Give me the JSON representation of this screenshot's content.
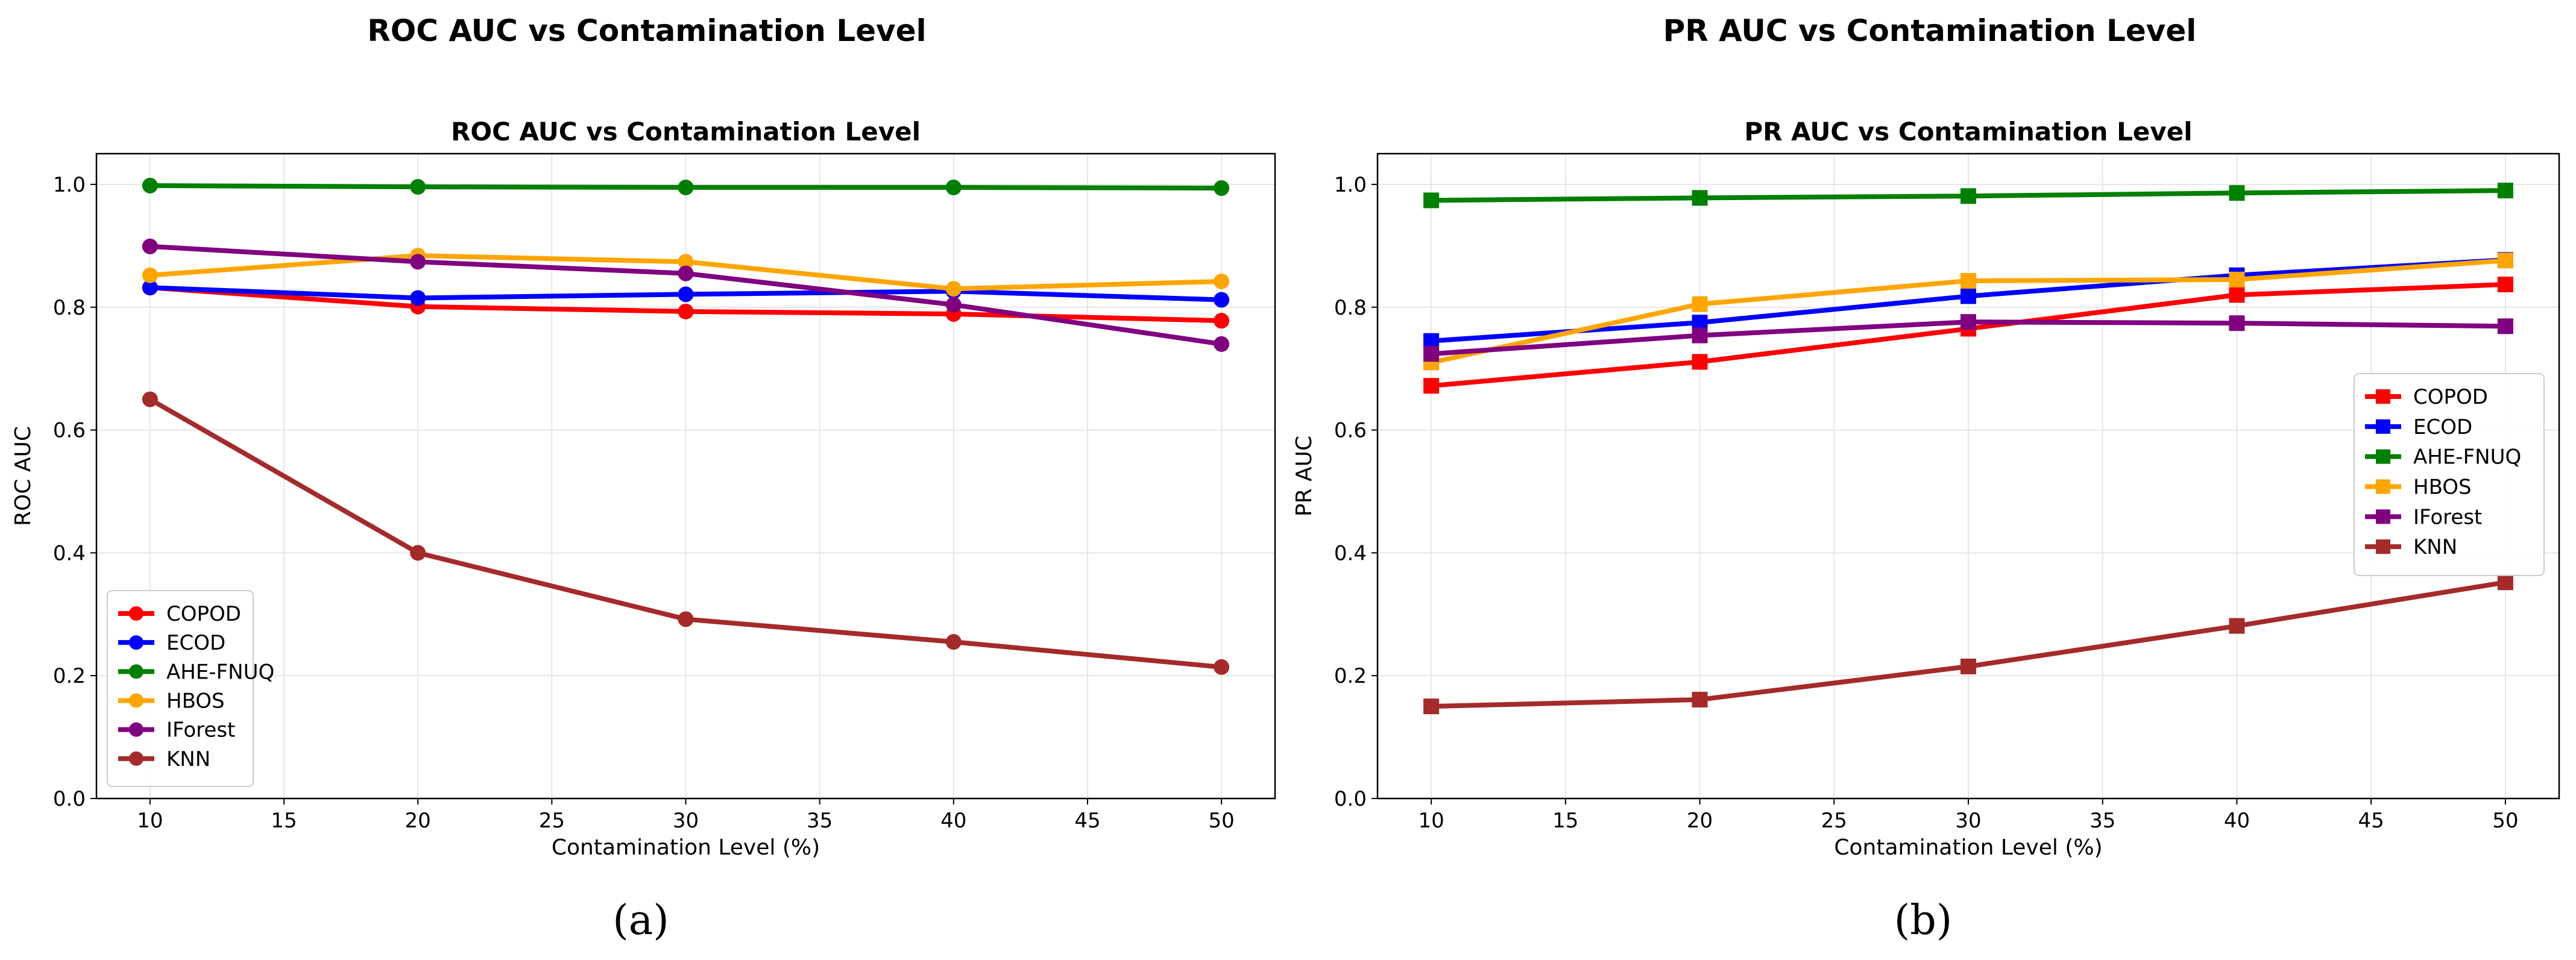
{
  "figure_titles": [
    "ROC AUC vs Contamination Level",
    "PR AUC vs Contamination Level"
  ],
  "captions": [
    "(a)",
    "(b)"
  ],
  "colors": {
    "COPOD": "#ff0000",
    "ECOD": "#0000ff",
    "AHE-FNUQ": "#008000",
    "HBOS": "#ffa500",
    "IForest": "#800080",
    "KNN": "#a52a2a"
  },
  "chart_data": [
    {
      "type": "line",
      "title": "ROC AUC vs Contamination Level",
      "xlabel": "Contamination Level (%)",
      "ylabel": "ROC AUC",
      "x": [
        10,
        20,
        30,
        40,
        50
      ],
      "xlim": [
        8,
        52
      ],
      "ylim": [
        0,
        1.05
      ],
      "xticks": [
        "10",
        "15",
        "20",
        "25",
        "30",
        "35",
        "40",
        "45",
        "50"
      ],
      "yticks": [
        "0.0",
        "0.2",
        "0.4",
        "0.6",
        "0.8",
        "1.0"
      ],
      "marker": "circle",
      "grid": true,
      "legend_position": "lower-left",
      "series": [
        {
          "name": "COPOD",
          "values": [
            0.832,
            0.801,
            0.793,
            0.789,
            0.778
          ]
        },
        {
          "name": "ECOD",
          "values": [
            0.832,
            0.815,
            0.821,
            0.826,
            0.812
          ]
        },
        {
          "name": "AHE-FNUQ",
          "values": [
            0.998,
            0.996,
            0.995,
            0.995,
            0.994
          ]
        },
        {
          "name": "HBOS",
          "values": [
            0.852,
            0.884,
            0.874,
            0.83,
            0.842
          ]
        },
        {
          "name": "IForest",
          "values": [
            0.899,
            0.874,
            0.855,
            0.804,
            0.74
          ]
        },
        {
          "name": "KNN",
          "values": [
            0.65,
            0.4,
            0.292,
            0.255,
            0.214
          ]
        }
      ]
    },
    {
      "type": "line",
      "title": "PR AUC vs Contamination Level",
      "xlabel": "Contamination Level (%)",
      "ylabel": "PR AUC",
      "x": [
        10,
        20,
        30,
        40,
        50
      ],
      "xlim": [
        8,
        52
      ],
      "ylim": [
        0,
        1.05
      ],
      "xticks": [
        "10",
        "15",
        "20",
        "25",
        "30",
        "35",
        "40",
        "45",
        "50"
      ],
      "yticks": [
        "0.0",
        "0.2",
        "0.4",
        "0.6",
        "0.8",
        "1.0"
      ],
      "marker": "square",
      "grid": true,
      "legend_position": "center-right",
      "series": [
        {
          "name": "COPOD",
          "values": [
            0.672,
            0.711,
            0.765,
            0.82,
            0.837
          ]
        },
        {
          "name": "ECOD",
          "values": [
            0.745,
            0.775,
            0.818,
            0.852,
            0.877
          ]
        },
        {
          "name": "AHE-FNUQ",
          "values": [
            0.974,
            0.978,
            0.981,
            0.986,
            0.99
          ]
        },
        {
          "name": "HBOS",
          "values": [
            0.71,
            0.805,
            0.843,
            0.845,
            0.876
          ]
        },
        {
          "name": "IForest",
          "values": [
            0.724,
            0.754,
            0.776,
            0.774,
            0.769
          ]
        },
        {
          "name": "KNN",
          "values": [
            0.15,
            0.161,
            0.215,
            0.281,
            0.352
          ]
        }
      ]
    }
  ]
}
